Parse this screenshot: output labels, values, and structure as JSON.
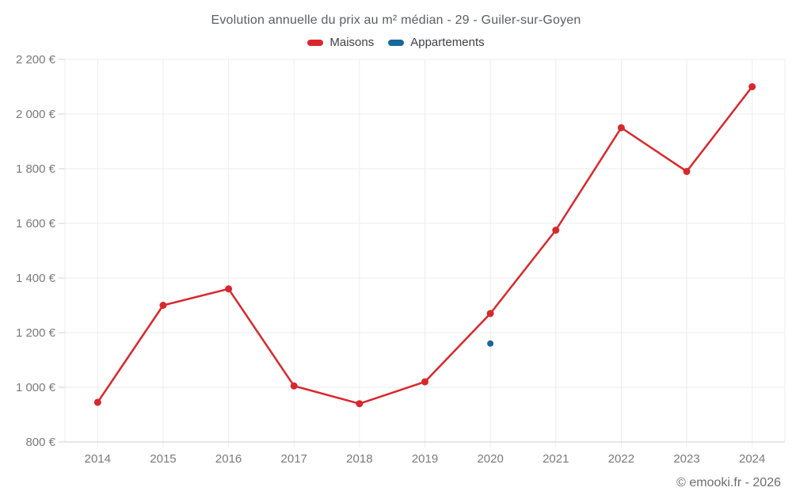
{
  "title": "Evolution annuelle du prix au m² médian - 29 - Guiler-sur-Goyen",
  "legend": [
    {
      "label": "Maisons",
      "color": "#d8282d"
    },
    {
      "label": "Appartements",
      "color": "#17699c"
    }
  ],
  "footer": {
    "credit": "© emooki.fr - 2026"
  },
  "colors": {
    "grid": "#ececec",
    "axis": "#d2d2d2",
    "tick_label": "#7a7a7a",
    "maisons": "#d8282d",
    "appartements": "#17699c"
  },
  "chart_data": {
    "type": "line",
    "title": "Evolution annuelle du prix au m² médian - 29 - Guiler-sur-Goyen",
    "categories": [
      "2014",
      "2015",
      "2016",
      "2017",
      "2018",
      "2019",
      "2020",
      "2021",
      "2022",
      "2023",
      "2024"
    ],
    "series": [
      {
        "name": "Maisons",
        "color": "#d8282d",
        "values": [
          945,
          1300,
          1360,
          1005,
          940,
          1020,
          1270,
          1575,
          1950,
          1790,
          2100
        ]
      },
      {
        "name": "Appartements",
        "color": "#17699c",
        "values": [
          null,
          null,
          null,
          null,
          null,
          null,
          1160,
          null,
          null,
          null,
          null
        ]
      }
    ],
    "xlabel": "",
    "ylabel": "",
    "ytick_labels": [
      "800 €",
      "1 000 €",
      "1 200 €",
      "1 400 €",
      "1 600 €",
      "1 800 €",
      "2 000 €",
      "2 200 €"
    ],
    "ylim": [
      800,
      2200
    ],
    "ytick_step": 200,
    "grid": true,
    "legend_position": "top",
    "currency_suffix": " €"
  }
}
